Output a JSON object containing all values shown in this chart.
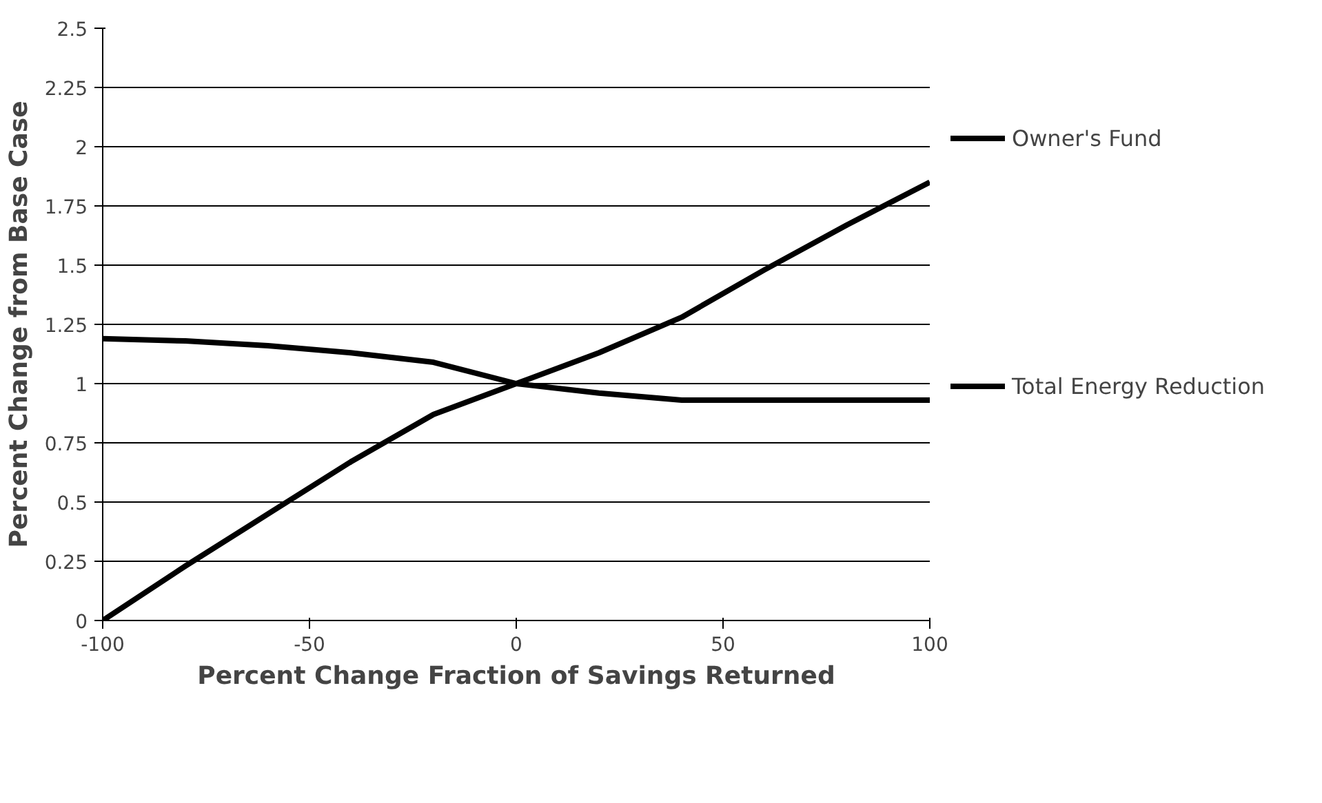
{
  "chart_data": {
    "type": "line",
    "xlabel": "Percent Change Fraction of Savings Returned",
    "ylabel": "Percent Change from Base Case",
    "x": [
      -100,
      -80,
      -60,
      -40,
      -20,
      0,
      20,
      40,
      60,
      80,
      100
    ],
    "series": [
      {
        "name": "Owner's Fund",
        "color": "#000000",
        "values": [
          0,
          0.23,
          0.45,
          0.67,
          0.87,
          1,
          1.13,
          1.28,
          1.48,
          1.67,
          1.85
        ]
      },
      {
        "name": "Total Energy Reduction",
        "color": "#000000",
        "values": [
          1.19,
          1.18,
          1.16,
          1.13,
          1.09,
          1,
          0.96,
          0.93,
          0.93,
          0.93,
          0.93
        ]
      }
    ],
    "xlim": [
      -100,
      100
    ],
    "xticks": [
      -100,
      -50,
      0,
      50,
      100
    ],
    "ylim": [
      0,
      2.5
    ],
    "yticks": [
      0,
      0.25,
      0.5,
      0.75,
      1,
      1.25,
      1.5,
      1.75,
      2,
      2.25,
      2.5
    ],
    "grid": "y",
    "legend": "right",
    "marker": "none",
    "line_style": "solid"
  }
}
